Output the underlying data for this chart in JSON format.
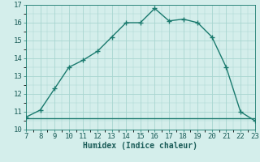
{
  "x": [
    7,
    8,
    9,
    10,
    11,
    12,
    13,
    14,
    15,
    16,
    17,
    18,
    19,
    20,
    21,
    22,
    23
  ],
  "y_curve": [
    10.7,
    11.1,
    12.3,
    13.5,
    13.9,
    14.4,
    15.2,
    16.0,
    16.0,
    16.8,
    16.1,
    16.2,
    16.0,
    15.2,
    13.5,
    11.0,
    10.5
  ],
  "y_hline": 10.65,
  "x_hline_start": 7,
  "x_hline_end": 23,
  "line_color": "#1a7a6e",
  "bg_color": "#d4eeeb",
  "grid_color": "#a8d5d0",
  "xlabel": "Humidex (Indice chaleur)",
  "ylim": [
    10,
    17
  ],
  "xlim": [
    7,
    23
  ],
  "yticks": [
    10,
    11,
    12,
    13,
    14,
    15,
    16,
    17
  ],
  "xticks": [
    7,
    8,
    9,
    10,
    11,
    12,
    13,
    14,
    15,
    16,
    17,
    18,
    19,
    20,
    21,
    22,
    23
  ],
  "marker": "+",
  "marker_size": 4,
  "line_width": 1.0,
  "xlabel_fontsize": 7,
  "tick_fontsize": 6.5
}
